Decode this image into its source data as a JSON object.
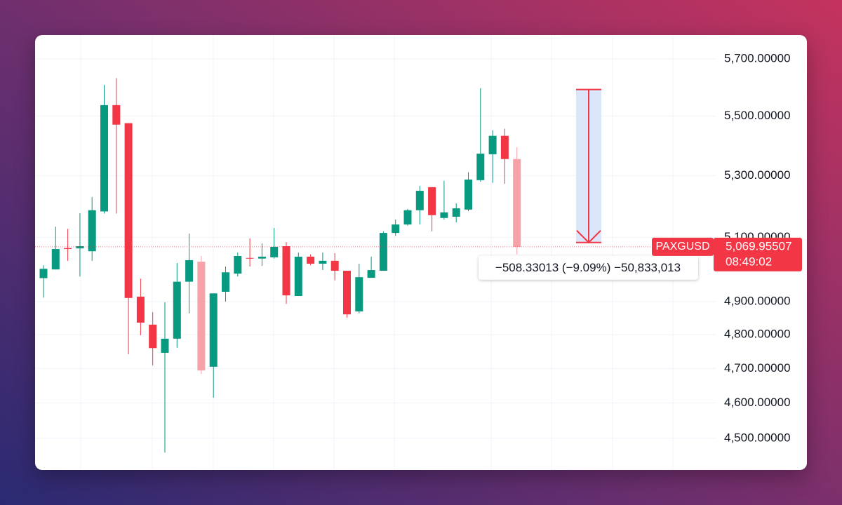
{
  "chart_data": {
    "type": "candlestick",
    "symbol": "PAXGUSD",
    "countdown": "08:49:02",
    "last_price": {
      "value": 5069.95507,
      "label": "5,069.95507"
    },
    "log_scale": true,
    "grid": true,
    "ylim": [
      4412,
      5785
    ],
    "yticks": [
      {
        "value": 4500,
        "label": "4,500.00000"
      },
      {
        "value": 4600,
        "label": "4,600.00000"
      },
      {
        "value": 4700,
        "label": "4,700.00000"
      },
      {
        "value": 4800,
        "label": "4,800.00000"
      },
      {
        "value": 4900,
        "label": "4,900.00000"
      },
      {
        "value": 5100,
        "label": "5,100.00000"
      },
      {
        "value": 5300,
        "label": "5,300.00000"
      },
      {
        "value": 5500,
        "label": "5,500.00000"
      },
      {
        "value": 5700,
        "label": "5,700.00000"
      }
    ],
    "open": [
      4972,
      4999,
      5066,
      5065,
      5056,
      5183,
      5538,
      5476,
      4915,
      4830,
      4746,
      4788,
      4961,
      5023,
      4705,
      4930,
      4986,
      5035,
      5033,
      5037,
      5072,
      4917,
      5039,
      5017,
      5026,
      4995,
      4870,
      4973,
      4995,
      5114,
      5141,
      5187,
      5262,
      5162,
      5166,
      5189,
      5285,
      5371,
      5433,
      5355
    ],
    "high": [
      5012,
      5134,
      5127,
      5177,
      5230,
      5608,
      5632,
      5476,
      4970,
      4868,
      4898,
      5019,
      5112,
      5041,
      4925,
      5008,
      5052,
      5097,
      5081,
      5130,
      5085,
      5052,
      5046,
      5052,
      5050,
      4995,
      5017,
      5039,
      5119,
      5157,
      5191,
      5266,
      5262,
      5283,
      5209,
      5311,
      5597,
      5452,
      5457,
      5395
    ],
    "low": [
      4912,
      4999,
      5026,
      4977,
      5026,
      5176,
      5176,
      4742,
      4798,
      4709,
      4460,
      4761,
      4864,
      4684,
      4615,
      4900,
      4977,
      5008,
      5010,
      5033,
      4893,
      4917,
      5012,
      4997,
      4965,
      4851,
      4864,
      4973,
      4995,
      5105,
      5137,
      5141,
      5119,
      5157,
      5148,
      5184,
      5280,
      5276,
      5273,
      5046
    ],
    "close": [
      5001,
      5063,
      5063,
      5072,
      5187,
      5538,
      5471,
      4911,
      4836,
      4760,
      4788,
      4961,
      5028,
      4694,
      4925,
      4990,
      5041,
      5033,
      5039,
      5070,
      4919,
      5039,
      5017,
      5026,
      4995,
      4861,
      4975,
      4997,
      5114,
      5141,
      5187,
      5250,
      5171,
      5180,
      5193,
      5287,
      5373,
      5433,
      5355,
      5069.95507
    ],
    "colors": [
      "#089981",
      "#089981",
      "#f23645",
      "#089981",
      "#089981",
      "#089981",
      "#f23645",
      "#f23645",
      "#f23645",
      "#f23645",
      "#089981",
      "#089981",
      "#089981",
      "#f7a1a9",
      "#089981",
      "#089981",
      "#089981",
      "#f23645",
      "#089981",
      "#089981",
      "#f23645",
      "#089981",
      "#f23645",
      "#089981",
      "#f23645",
      "#f23645",
      "#089981",
      "#089981",
      "#089981",
      "#089981",
      "#089981",
      "#089981",
      "#f23645",
      "#089981",
      "#089981",
      "#089981",
      "#089981",
      "#089981",
      "#f23645",
      "#f7a1a9"
    ],
    "price_color": "#f23645",
    "measure": {
      "from": 5592,
      "to": 5083.67,
      "label": "−508.33013 (−9.09%) −50,833,013",
      "color": "#f23645",
      "fill": "#dce6fa"
    }
  }
}
